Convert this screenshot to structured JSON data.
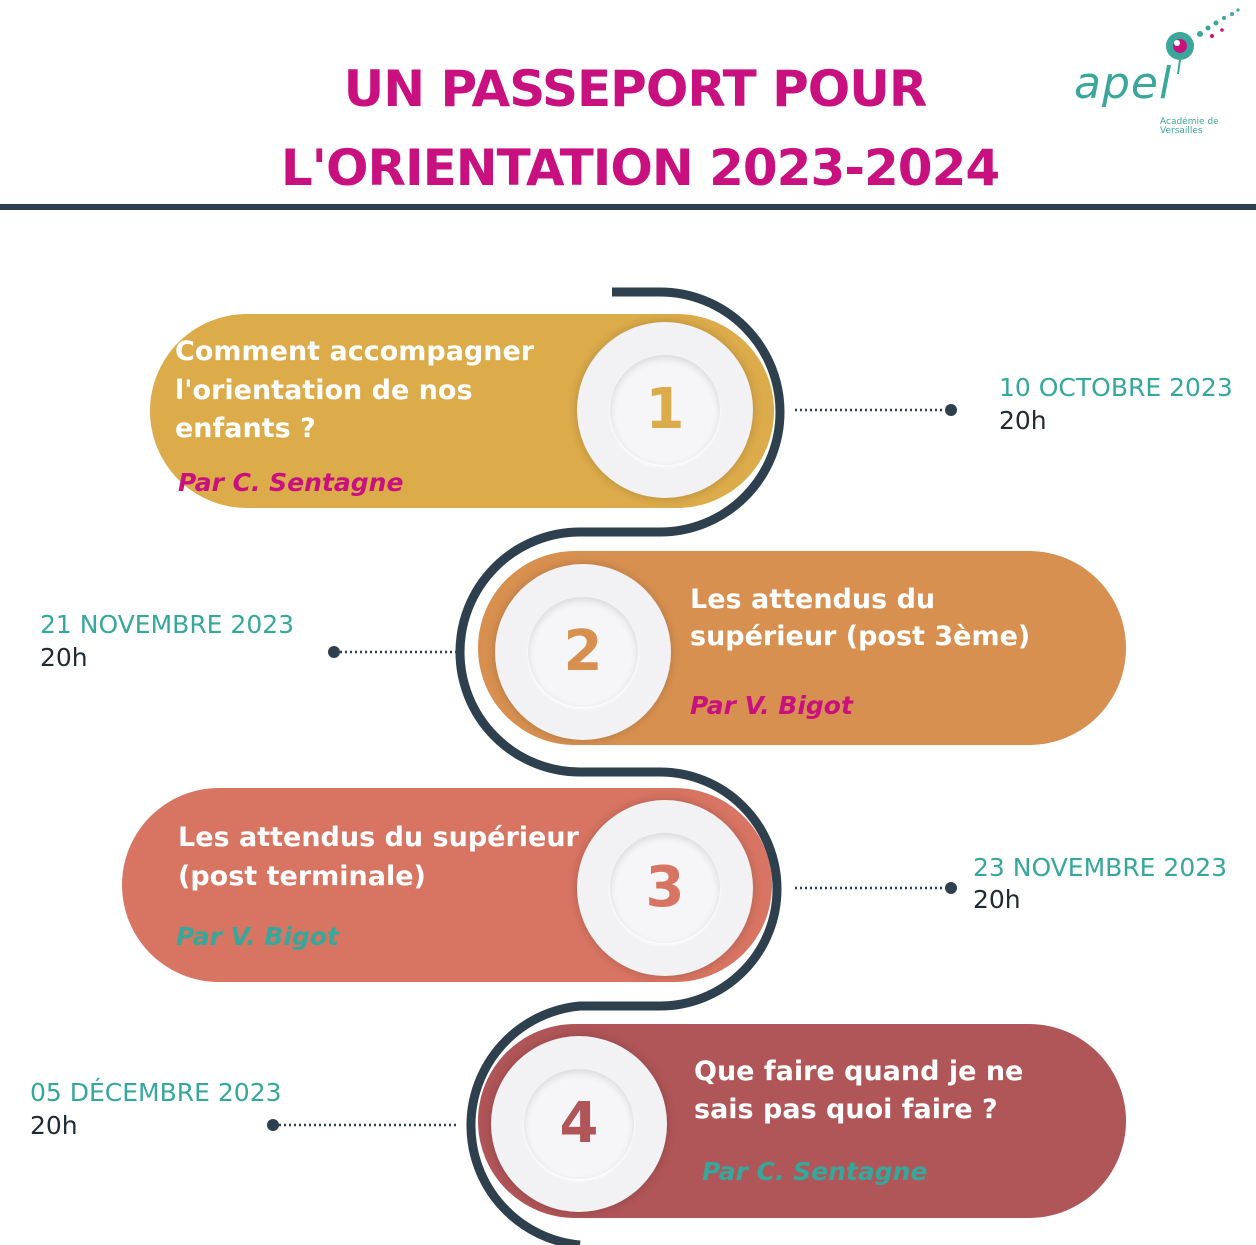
{
  "header": {
    "title_line1": "UN PASSEPORT POUR",
    "title_line2": "L'ORIENTATION 2023-2024",
    "title_color": "#c8117f",
    "logo": {
      "name": "apel",
      "subtitle": "Académie de Versailles",
      "color": "#3aa79b"
    }
  },
  "steps": [
    {
      "number": "1",
      "lines": [
        "Comment accompagner",
        "l'orientation de nos",
        "enfants ?"
      ],
      "author": "Par C. Sentagne",
      "date": "10 OCTOBRE 2023",
      "time": "20h",
      "color": "#dcab4a",
      "author_color": "#c8117f"
    },
    {
      "number": "2",
      "lines": [
        "Les attendus du",
        "supérieur (post 3ème)"
      ],
      "author": "Par V. Bigot",
      "date": "21 NOVEMBRE 2023",
      "time": "20h",
      "color": "#d89050",
      "author_color": "#c8117f"
    },
    {
      "number": "3",
      "lines": [
        "Les attendus du supérieur",
        "(post terminale)"
      ],
      "author": "Par V. Bigot",
      "date": "23 NOVEMBRE 2023",
      "time": "20h",
      "color": "#d87462",
      "author_color": "#36a89b"
    },
    {
      "number": "4",
      "lines": [
        "Que faire quand je ne",
        "sais pas quoi faire ?"
      ],
      "author": "Par C. Sentagne",
      "date": "05 DÉCEMBRE 2023",
      "time": "20h",
      "color": "#b05558",
      "author_color": "#36a89b"
    }
  ],
  "track_color": "#2e3f4d"
}
